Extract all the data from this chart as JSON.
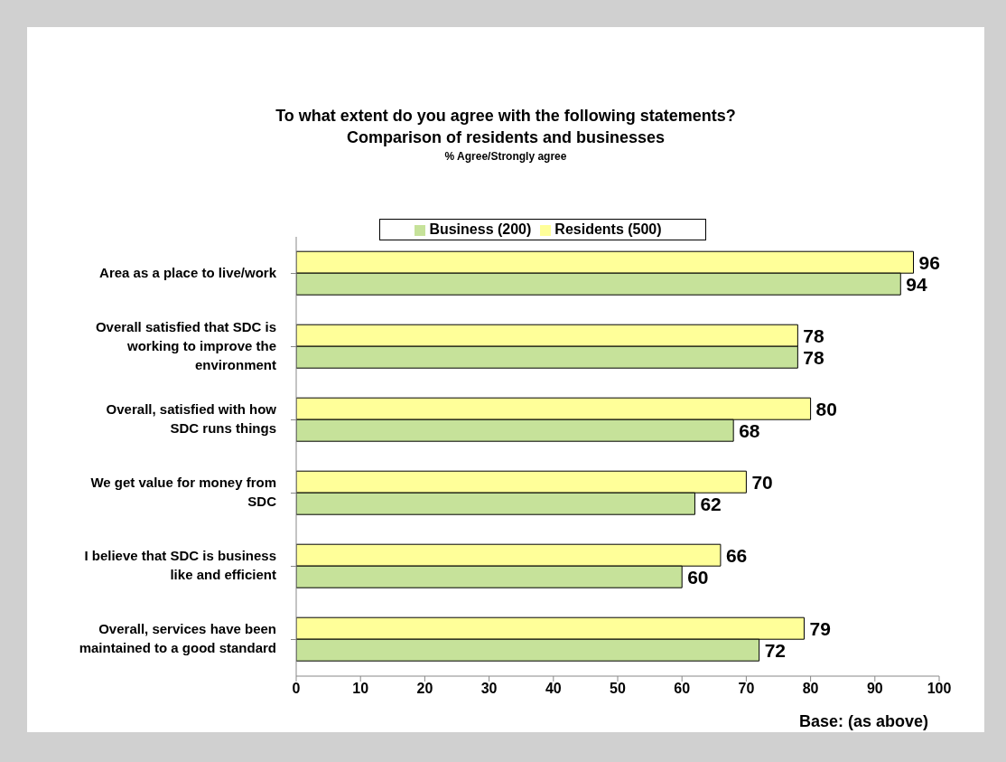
{
  "chart_data": {
    "type": "bar",
    "orientation": "horizontal",
    "title": "To what extent do you agree with the following statements?",
    "subtitle": "Comparison of residents and businesses",
    "annotations": [
      "% Agree/Strongly agree",
      "Base: (as above)"
    ],
    "categories": [
      "Area as a place to live/work",
      "Overall satisfied that SDC is working to improve the environment",
      "Overall, satisfied with how SDC runs things",
      "We get value for money from SDC",
      "I believe that SDC is business like and efficient",
      "Overall, services have been maintained to a good standard"
    ],
    "series": [
      {
        "name": "Residents (500)",
        "color": "#ffff99",
        "values": [
          96,
          78,
          80,
          70,
          66,
          79
        ]
      },
      {
        "name": "Business (200)",
        "color": "#c6e29a",
        "values": [
          94,
          78,
          68,
          62,
          60,
          72
        ]
      }
    ],
    "xlim": [
      0,
      100
    ],
    "xticks": [
      0,
      10,
      20,
      30,
      40,
      50,
      60,
      70,
      80,
      90,
      100
    ],
    "grid": false,
    "legend": "top",
    "data_labels": true
  }
}
